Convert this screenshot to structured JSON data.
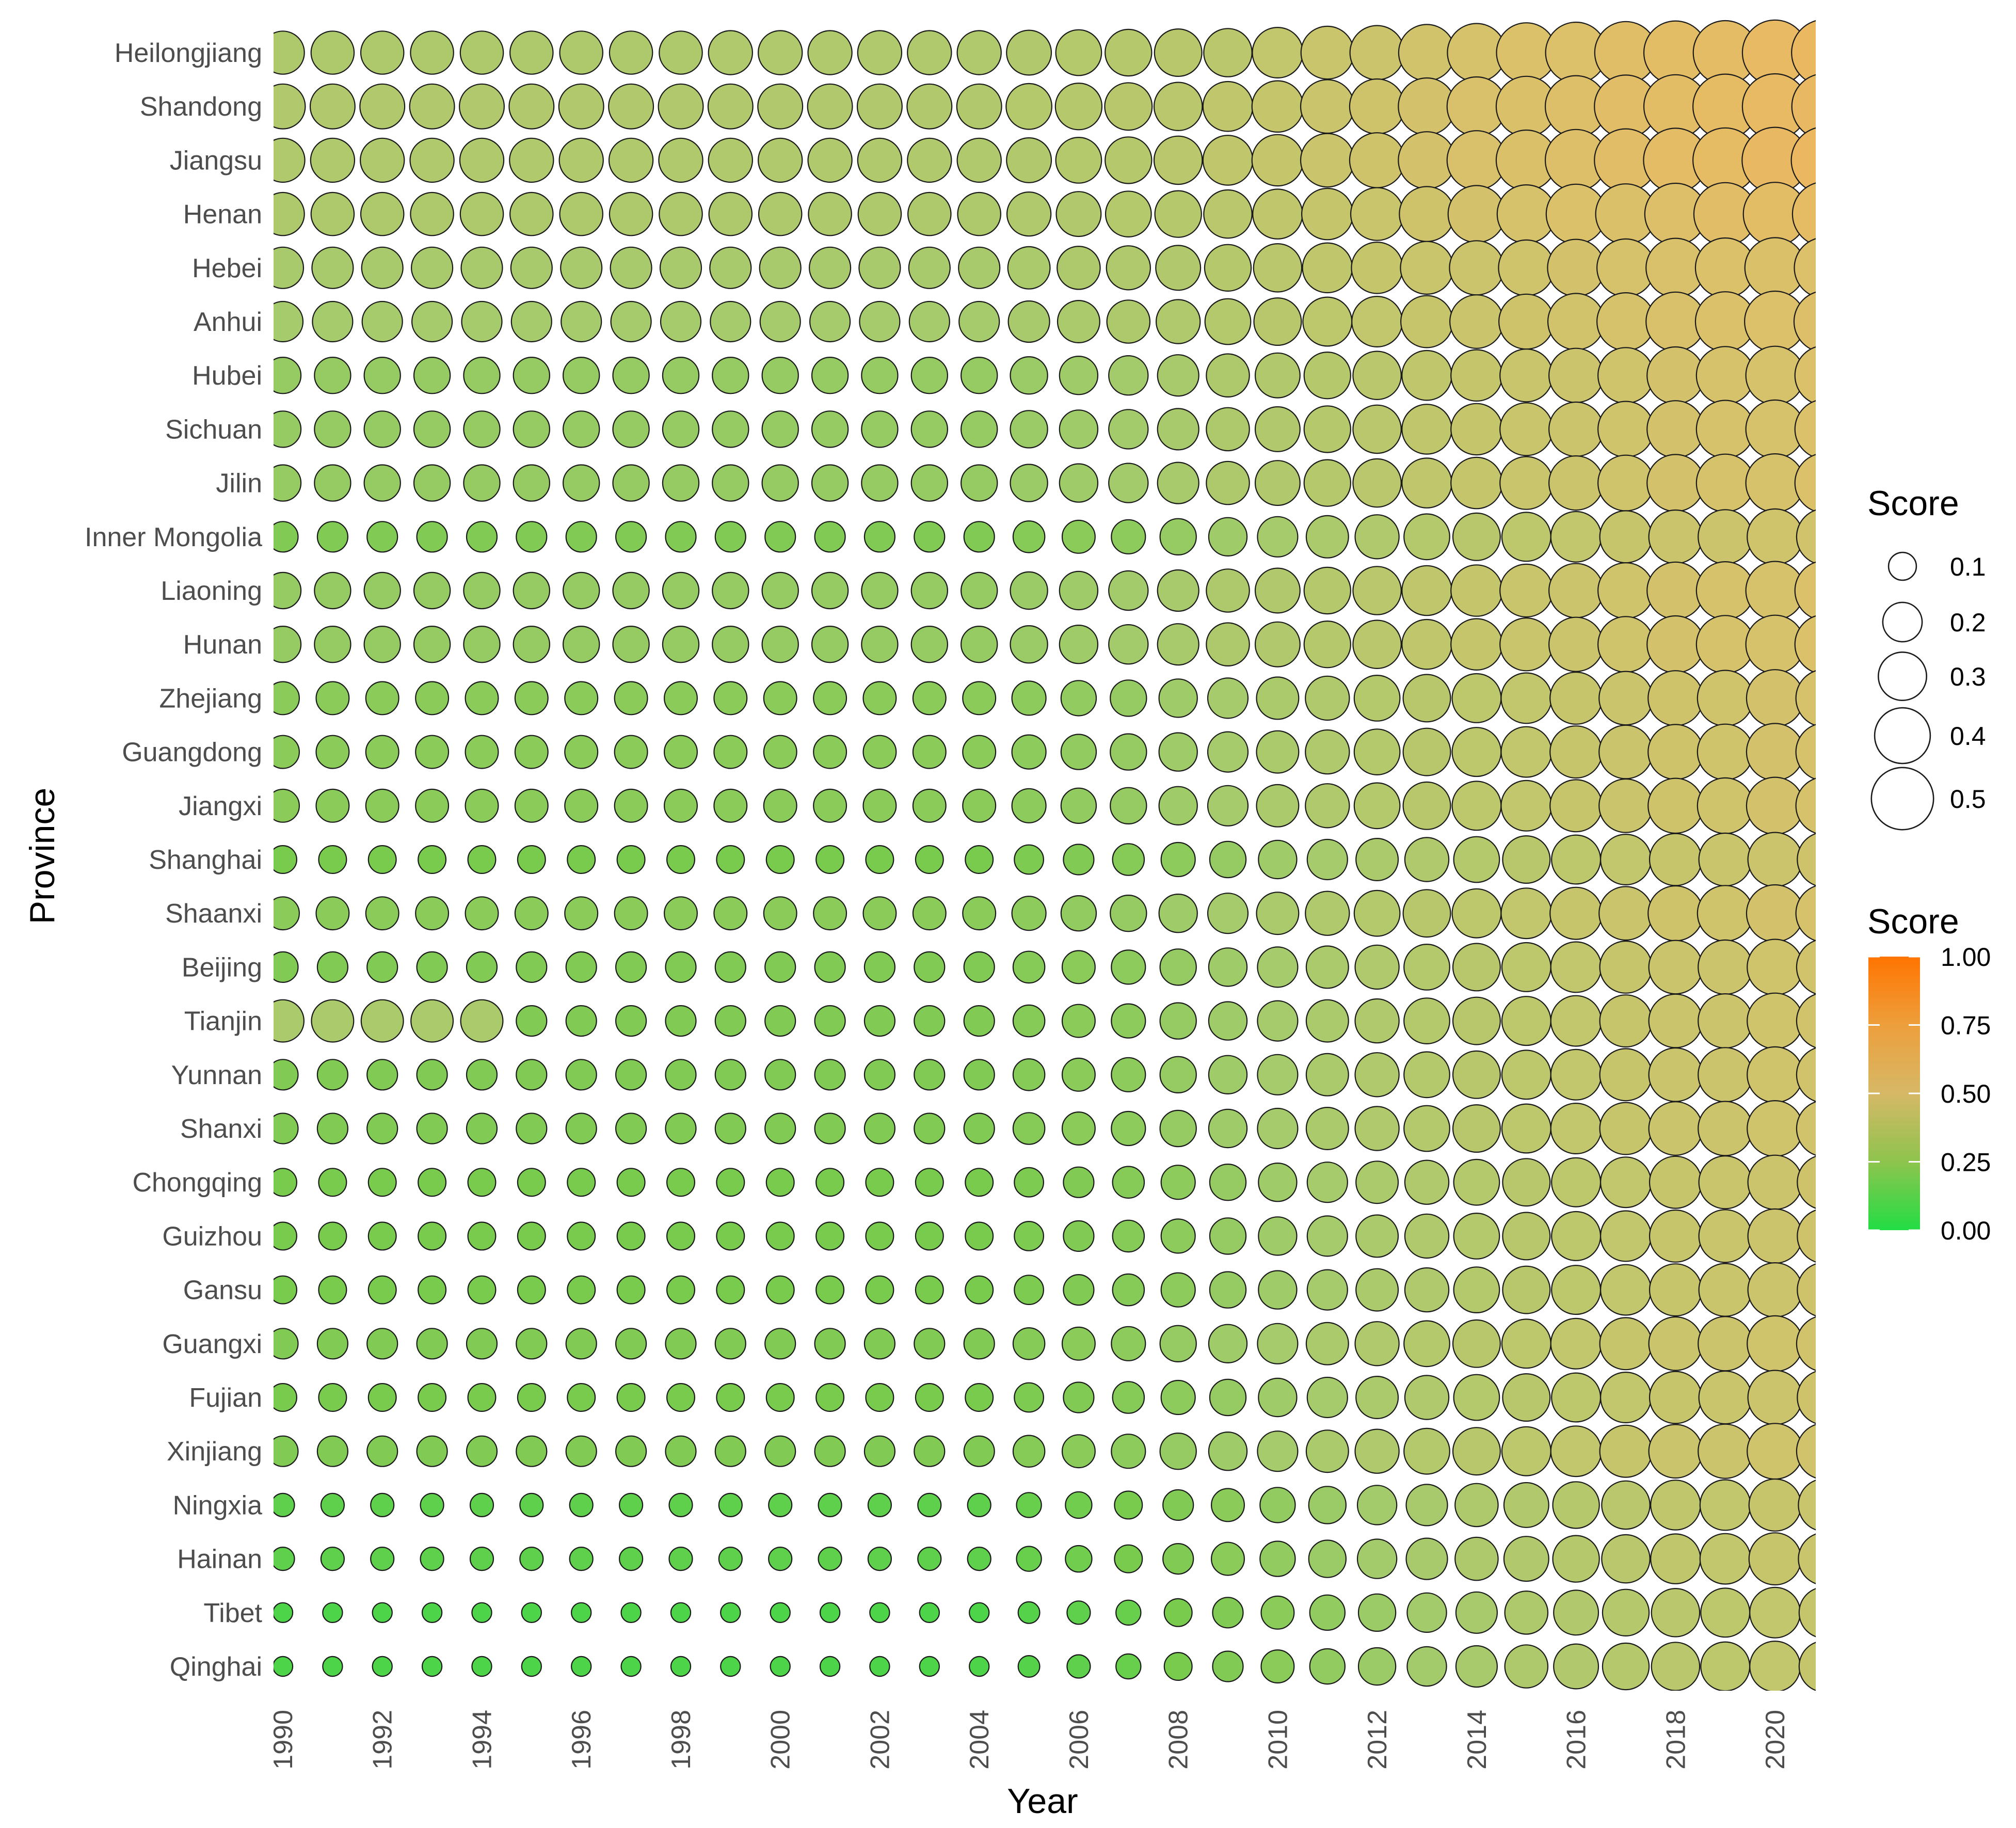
{
  "chart_data": {
    "type": "bubble-grid",
    "title": "",
    "xlabel": "Year",
    "ylabel": "Province",
    "years": [
      1990,
      1991,
      1992,
      1993,
      1994,
      1995,
      1996,
      1997,
      1998,
      1999,
      2000,
      2001,
      2002,
      2003,
      2004,
      2005,
      2006,
      2007,
      2008,
      2009,
      2010,
      2011,
      2012,
      2013,
      2014,
      2015,
      2016,
      2017,
      2018,
      2019,
      2020,
      2021
    ],
    "year_tick_labels": [
      "1990",
      "1992",
      "1994",
      "1996",
      "1998",
      "2000",
      "2002",
      "2004",
      "2006",
      "2008",
      "2010",
      "2012",
      "2014",
      "2016",
      "2018",
      "2020"
    ],
    "provinces": [
      "Heilongjiang",
      "Shandong",
      "Jiangsu",
      "Henan",
      "Hebei",
      "Anhui",
      "Hubei",
      "Sichuan",
      "Jilin",
      "Inner Mongolia",
      "Liaoning",
      "Hunan",
      "Zhejiang",
      "Guangdong",
      "Jiangxi",
      "Shanghai",
      "Shaanxi",
      "Beijing",
      "Tianjin",
      "Yunnan",
      "Shanxi",
      "Chongqing",
      "Guizhou",
      "Gansu",
      "Guangxi",
      "Fujian",
      "Xinjiang",
      "Ningxia",
      "Hainan",
      "Tibet",
      "Qinghai"
    ],
    "score_profiles": {
      "Heilongjiang": [
        0.24,
        0.24,
        0.24,
        0.24,
        0.24,
        0.24,
        0.24,
        0.24,
        0.24,
        0.25,
        0.25,
        0.25,
        0.25,
        0.25,
        0.25,
        0.26,
        0.27,
        0.28,
        0.29,
        0.3,
        0.33,
        0.36,
        0.38,
        0.41,
        0.44,
        0.46,
        0.48,
        0.5,
        0.52,
        0.53,
        0.55,
        0.57
      ],
      "Shandong": [
        0.26,
        0.26,
        0.26,
        0.26,
        0.26,
        0.26,
        0.26,
        0.26,
        0.26,
        0.26,
        0.26,
        0.26,
        0.26,
        0.26,
        0.26,
        0.27,
        0.28,
        0.29,
        0.3,
        0.32,
        0.34,
        0.37,
        0.39,
        0.42,
        0.45,
        0.47,
        0.49,
        0.51,
        0.52,
        0.54,
        0.55,
        0.56
      ],
      "Jiangsu": [
        0.25,
        0.25,
        0.25,
        0.25,
        0.25,
        0.25,
        0.25,
        0.25,
        0.25,
        0.25,
        0.25,
        0.25,
        0.25,
        0.25,
        0.25,
        0.26,
        0.27,
        0.28,
        0.3,
        0.32,
        0.34,
        0.37,
        0.39,
        0.42,
        0.45,
        0.47,
        0.49,
        0.51,
        0.53,
        0.54,
        0.56,
        0.58
      ],
      "Henan": [
        0.24,
        0.24,
        0.24,
        0.24,
        0.24,
        0.24,
        0.24,
        0.24,
        0.24,
        0.24,
        0.24,
        0.24,
        0.24,
        0.24,
        0.24,
        0.25,
        0.26,
        0.27,
        0.28,
        0.3,
        0.32,
        0.34,
        0.36,
        0.39,
        0.42,
        0.44,
        0.46,
        0.47,
        0.49,
        0.51,
        0.52,
        0.54
      ],
      "Hebei": [
        0.22,
        0.22,
        0.22,
        0.22,
        0.22,
        0.22,
        0.22,
        0.22,
        0.22,
        0.22,
        0.22,
        0.22,
        0.22,
        0.22,
        0.22,
        0.23,
        0.24,
        0.25,
        0.26,
        0.28,
        0.3,
        0.32,
        0.34,
        0.36,
        0.38,
        0.4,
        0.42,
        0.43,
        0.45,
        0.46,
        0.47,
        0.48
      ],
      "Anhui": [
        0.21,
        0.21,
        0.21,
        0.21,
        0.21,
        0.21,
        0.21,
        0.21,
        0.21,
        0.21,
        0.21,
        0.21,
        0.21,
        0.21,
        0.21,
        0.22,
        0.23,
        0.24,
        0.25,
        0.27,
        0.29,
        0.31,
        0.33,
        0.35,
        0.37,
        0.39,
        0.41,
        0.43,
        0.45,
        0.46,
        0.48,
        0.49
      ],
      "Hubei": [
        0.17,
        0.17,
        0.17,
        0.17,
        0.17,
        0.17,
        0.17,
        0.17,
        0.17,
        0.17,
        0.17,
        0.17,
        0.17,
        0.17,
        0.17,
        0.18,
        0.19,
        0.2,
        0.22,
        0.24,
        0.26,
        0.28,
        0.3,
        0.32,
        0.34,
        0.36,
        0.38,
        0.4,
        0.42,
        0.43,
        0.44,
        0.46
      ],
      "Sichuan": [
        0.17,
        0.17,
        0.17,
        0.17,
        0.17,
        0.17,
        0.17,
        0.17,
        0.17,
        0.17,
        0.17,
        0.17,
        0.17,
        0.17,
        0.17,
        0.18,
        0.19,
        0.2,
        0.22,
        0.24,
        0.26,
        0.28,
        0.3,
        0.32,
        0.34,
        0.36,
        0.38,
        0.4,
        0.42,
        0.43,
        0.44,
        0.46
      ],
      "Jilin": [
        0.17,
        0.17,
        0.17,
        0.17,
        0.17,
        0.17,
        0.17,
        0.17,
        0.17,
        0.17,
        0.17,
        0.17,
        0.17,
        0.17,
        0.17,
        0.18,
        0.19,
        0.2,
        0.22,
        0.24,
        0.26,
        0.28,
        0.3,
        0.32,
        0.34,
        0.36,
        0.38,
        0.4,
        0.42,
        0.43,
        0.44,
        0.46
      ],
      "Inner Mongolia": [
        0.12,
        0.12,
        0.12,
        0.12,
        0.12,
        0.12,
        0.12,
        0.12,
        0.12,
        0.12,
        0.12,
        0.12,
        0.12,
        0.12,
        0.12,
        0.13,
        0.14,
        0.15,
        0.17,
        0.19,
        0.21,
        0.23,
        0.25,
        0.27,
        0.29,
        0.31,
        0.33,
        0.35,
        0.37,
        0.38,
        0.4,
        0.41
      ],
      "Liaoning": [
        0.17,
        0.17,
        0.17,
        0.17,
        0.17,
        0.17,
        0.17,
        0.17,
        0.17,
        0.17,
        0.17,
        0.17,
        0.17,
        0.17,
        0.17,
        0.18,
        0.19,
        0.2,
        0.22,
        0.24,
        0.26,
        0.28,
        0.3,
        0.32,
        0.34,
        0.36,
        0.38,
        0.4,
        0.42,
        0.43,
        0.44,
        0.46
      ],
      "Hunan": [
        0.17,
        0.17,
        0.17,
        0.17,
        0.17,
        0.17,
        0.17,
        0.17,
        0.17,
        0.17,
        0.17,
        0.17,
        0.17,
        0.17,
        0.17,
        0.18,
        0.19,
        0.2,
        0.22,
        0.24,
        0.26,
        0.28,
        0.3,
        0.32,
        0.34,
        0.36,
        0.38,
        0.4,
        0.42,
        0.43,
        0.44,
        0.46
      ],
      "Zhejiang": [
        0.14,
        0.14,
        0.14,
        0.14,
        0.14,
        0.14,
        0.14,
        0.14,
        0.14,
        0.14,
        0.14,
        0.14,
        0.14,
        0.14,
        0.14,
        0.15,
        0.16,
        0.17,
        0.19,
        0.21,
        0.23,
        0.25,
        0.27,
        0.29,
        0.31,
        0.33,
        0.35,
        0.37,
        0.39,
        0.4,
        0.42,
        0.43
      ],
      "Guangdong": [
        0.14,
        0.14,
        0.14,
        0.14,
        0.14,
        0.14,
        0.14,
        0.14,
        0.14,
        0.14,
        0.14,
        0.14,
        0.14,
        0.14,
        0.14,
        0.15,
        0.16,
        0.17,
        0.19,
        0.21,
        0.23,
        0.25,
        0.27,
        0.29,
        0.31,
        0.33,
        0.35,
        0.37,
        0.39,
        0.4,
        0.42,
        0.43
      ],
      "Jiangxi": [
        0.14,
        0.14,
        0.14,
        0.14,
        0.14,
        0.14,
        0.14,
        0.14,
        0.14,
        0.14,
        0.14,
        0.14,
        0.14,
        0.14,
        0.14,
        0.15,
        0.16,
        0.17,
        0.19,
        0.21,
        0.23,
        0.25,
        0.27,
        0.29,
        0.31,
        0.33,
        0.35,
        0.37,
        0.39,
        0.4,
        0.42,
        0.43
      ],
      "Shanghai": [
        0.1,
        0.1,
        0.1,
        0.1,
        0.1,
        0.1,
        0.1,
        0.1,
        0.1,
        0.1,
        0.1,
        0.1,
        0.1,
        0.1,
        0.1,
        0.11,
        0.12,
        0.13,
        0.15,
        0.17,
        0.19,
        0.21,
        0.23,
        0.25,
        0.27,
        0.29,
        0.31,
        0.33,
        0.35,
        0.36,
        0.38,
        0.39
      ],
      "Shaanxi": [
        0.14,
        0.14,
        0.14,
        0.14,
        0.14,
        0.14,
        0.14,
        0.14,
        0.14,
        0.14,
        0.14,
        0.14,
        0.14,
        0.14,
        0.14,
        0.15,
        0.16,
        0.17,
        0.19,
        0.21,
        0.23,
        0.25,
        0.27,
        0.29,
        0.31,
        0.33,
        0.35,
        0.37,
        0.39,
        0.4,
        0.42,
        0.43
      ],
      "Beijing": [
        0.12,
        0.12,
        0.12,
        0.12,
        0.12,
        0.12,
        0.12,
        0.12,
        0.12,
        0.12,
        0.12,
        0.12,
        0.12,
        0.12,
        0.12,
        0.13,
        0.14,
        0.15,
        0.17,
        0.19,
        0.21,
        0.23,
        0.25,
        0.27,
        0.29,
        0.31,
        0.33,
        0.35,
        0.37,
        0.38,
        0.4,
        0.41
      ],
      "Tianjin": [
        0.23,
        0.23,
        0.23,
        0.23,
        0.23,
        0.12,
        0.12,
        0.12,
        0.12,
        0.12,
        0.12,
        0.12,
        0.12,
        0.12,
        0.12,
        0.13,
        0.14,
        0.15,
        0.17,
        0.19,
        0.21,
        0.23,
        0.25,
        0.27,
        0.29,
        0.31,
        0.33,
        0.35,
        0.37,
        0.38,
        0.4,
        0.41
      ],
      "Yunnan": [
        0.12,
        0.12,
        0.12,
        0.12,
        0.12,
        0.12,
        0.12,
        0.12,
        0.12,
        0.12,
        0.12,
        0.12,
        0.12,
        0.12,
        0.12,
        0.13,
        0.14,
        0.15,
        0.17,
        0.19,
        0.21,
        0.23,
        0.25,
        0.27,
        0.29,
        0.31,
        0.33,
        0.35,
        0.37,
        0.38,
        0.4,
        0.41
      ],
      "Shanxi": [
        0.12,
        0.12,
        0.12,
        0.12,
        0.12,
        0.12,
        0.12,
        0.12,
        0.12,
        0.12,
        0.12,
        0.12,
        0.12,
        0.12,
        0.12,
        0.13,
        0.14,
        0.15,
        0.17,
        0.19,
        0.21,
        0.23,
        0.25,
        0.27,
        0.29,
        0.31,
        0.33,
        0.35,
        0.37,
        0.38,
        0.4,
        0.41
      ],
      "Chongqing": [
        0.1,
        0.1,
        0.1,
        0.1,
        0.1,
        0.1,
        0.1,
        0.1,
        0.1,
        0.1,
        0.1,
        0.1,
        0.1,
        0.1,
        0.1,
        0.11,
        0.12,
        0.13,
        0.15,
        0.17,
        0.19,
        0.21,
        0.23,
        0.25,
        0.27,
        0.29,
        0.31,
        0.33,
        0.35,
        0.36,
        0.38,
        0.39
      ],
      "Guizhou": [
        0.1,
        0.1,
        0.1,
        0.1,
        0.1,
        0.1,
        0.1,
        0.1,
        0.1,
        0.1,
        0.1,
        0.1,
        0.1,
        0.1,
        0.1,
        0.11,
        0.12,
        0.13,
        0.15,
        0.17,
        0.19,
        0.21,
        0.23,
        0.25,
        0.27,
        0.29,
        0.31,
        0.33,
        0.35,
        0.36,
        0.38,
        0.39
      ],
      "Gansu": [
        0.1,
        0.1,
        0.1,
        0.1,
        0.1,
        0.1,
        0.1,
        0.1,
        0.1,
        0.1,
        0.1,
        0.1,
        0.1,
        0.1,
        0.1,
        0.11,
        0.12,
        0.13,
        0.15,
        0.17,
        0.19,
        0.21,
        0.23,
        0.25,
        0.27,
        0.29,
        0.31,
        0.33,
        0.35,
        0.36,
        0.38,
        0.39
      ],
      "Guangxi": [
        0.12,
        0.12,
        0.12,
        0.12,
        0.12,
        0.12,
        0.12,
        0.12,
        0.12,
        0.12,
        0.12,
        0.12,
        0.12,
        0.12,
        0.12,
        0.13,
        0.14,
        0.15,
        0.17,
        0.19,
        0.21,
        0.23,
        0.25,
        0.27,
        0.29,
        0.31,
        0.33,
        0.35,
        0.37,
        0.38,
        0.4,
        0.41
      ],
      "Fujian": [
        0.1,
        0.1,
        0.1,
        0.1,
        0.1,
        0.1,
        0.1,
        0.1,
        0.1,
        0.1,
        0.1,
        0.1,
        0.1,
        0.1,
        0.1,
        0.11,
        0.12,
        0.13,
        0.15,
        0.17,
        0.19,
        0.21,
        0.23,
        0.25,
        0.27,
        0.29,
        0.31,
        0.33,
        0.35,
        0.36,
        0.38,
        0.39
      ],
      "Xinjiang": [
        0.12,
        0.12,
        0.12,
        0.12,
        0.12,
        0.12,
        0.12,
        0.12,
        0.12,
        0.12,
        0.12,
        0.12,
        0.12,
        0.12,
        0.12,
        0.13,
        0.14,
        0.15,
        0.17,
        0.19,
        0.21,
        0.23,
        0.25,
        0.27,
        0.29,
        0.31,
        0.33,
        0.35,
        0.37,
        0.38,
        0.4,
        0.41
      ],
      "Ningxia": [
        0.07,
        0.07,
        0.07,
        0.07,
        0.07,
        0.07,
        0.07,
        0.07,
        0.07,
        0.07,
        0.07,
        0.07,
        0.07,
        0.07,
        0.07,
        0.08,
        0.09,
        0.1,
        0.12,
        0.14,
        0.16,
        0.18,
        0.2,
        0.22,
        0.24,
        0.26,
        0.28,
        0.3,
        0.32,
        0.33,
        0.35,
        0.36
      ],
      "Hainan": [
        0.07,
        0.07,
        0.07,
        0.07,
        0.07,
        0.07,
        0.07,
        0.07,
        0.07,
        0.07,
        0.07,
        0.07,
        0.07,
        0.07,
        0.07,
        0.08,
        0.09,
        0.1,
        0.12,
        0.14,
        0.16,
        0.18,
        0.2,
        0.22,
        0.24,
        0.26,
        0.28,
        0.3,
        0.32,
        0.33,
        0.35,
        0.36
      ],
      "Tibet": [
        0.05,
        0.05,
        0.05,
        0.05,
        0.05,
        0.05,
        0.05,
        0.05,
        0.05,
        0.05,
        0.05,
        0.05,
        0.05,
        0.05,
        0.05,
        0.06,
        0.07,
        0.08,
        0.1,
        0.12,
        0.14,
        0.16,
        0.18,
        0.2,
        0.22,
        0.24,
        0.26,
        0.28,
        0.3,
        0.31,
        0.33,
        0.34
      ],
      "Qinghai": [
        0.05,
        0.05,
        0.05,
        0.05,
        0.05,
        0.05,
        0.05,
        0.05,
        0.05,
        0.05,
        0.05,
        0.05,
        0.05,
        0.05,
        0.05,
        0.06,
        0.07,
        0.08,
        0.1,
        0.12,
        0.14,
        0.16,
        0.18,
        0.2,
        0.22,
        0.24,
        0.26,
        0.28,
        0.3,
        0.31,
        0.33,
        0.34
      ]
    },
    "size_legend": {
      "title": "Score",
      "values": [
        0.1,
        0.2,
        0.3,
        0.4,
        0.5
      ],
      "labels": [
        "0.1",
        "0.2",
        "0.3",
        "0.4",
        "0.5"
      ]
    },
    "color_legend": {
      "title": "Score",
      "range": [
        0,
        1
      ],
      "ticks": [
        "1.00",
        "0.75",
        "0.50",
        "0.25",
        "0.00"
      ],
      "gradient_colors": [
        "#22DD44",
        "#8EC44E",
        "#D6B866",
        "#ED9F3C",
        "#FF7400"
      ]
    }
  }
}
